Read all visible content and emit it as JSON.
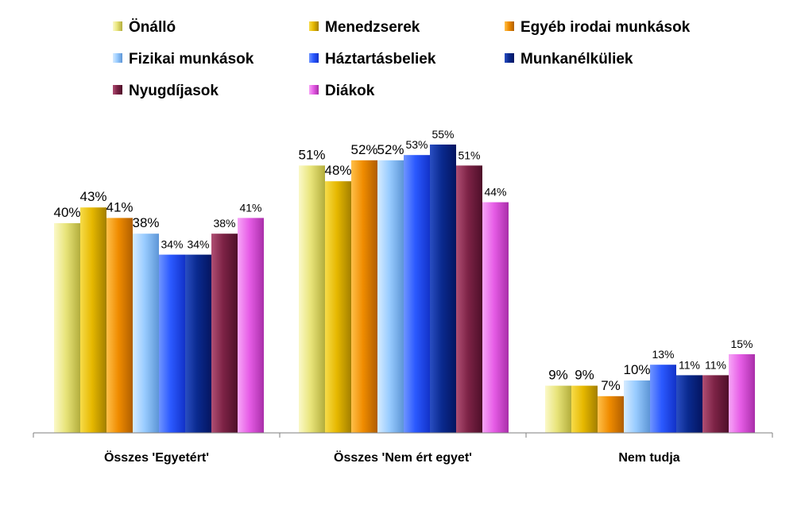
{
  "chart_data": {
    "type": "bar",
    "title": "",
    "xlabel": "",
    "ylabel": "",
    "ylim": [
      0,
      60
    ],
    "grid": false,
    "legend_position": "top",
    "categories": [
      "Összes 'Egyetért'",
      "Összes 'Nem ért egyet'",
      "Nem tudja"
    ],
    "series": [
      {
        "name": "Önálló",
        "values": [
          40,
          51,
          9
        ],
        "labels": [
          "40%",
          "51%",
          "9%"
        ],
        "color": "#e8e47a",
        "color_light": "#fbf9c9",
        "color_dark": "#b3ad3c"
      },
      {
        "name": "Menedzserek",
        "values": [
          43,
          48,
          9
        ],
        "labels": [
          "43%",
          "48%",
          "9%"
        ],
        "color": "#e6b800",
        "color_light": "#f7dc4a",
        "color_dark": "#a37f00"
      },
      {
        "name": "Egyéb irodai munkások",
        "values": [
          41,
          52,
          7
        ],
        "labels": [
          "41%",
          "52%",
          "7%"
        ],
        "color": "#f08c00",
        "color_light": "#ffc04a",
        "color_dark": "#b05e00"
      },
      {
        "name": "Fizikai munkások",
        "values": [
          38,
          52,
          10
        ],
        "labels": [
          "38%",
          "52%",
          "10%"
        ],
        "color": "#99ccff",
        "color_light": "#d6ebff",
        "color_dark": "#5d95d6"
      },
      {
        "name": "Háztartásbeliek",
        "values": [
          34,
          53,
          13
        ],
        "labels": [
          "34%",
          "53%",
          "13%"
        ],
        "color": "#2b59ff",
        "color_light": "#6f95ff",
        "color_dark": "#1232c8"
      },
      {
        "name": "Munkanélküliek",
        "values": [
          34,
          55,
          11
        ],
        "labels": [
          "34%",
          "55%",
          "11%"
        ],
        "color": "#0a2a8f",
        "color_light": "#2a4ec2",
        "color_dark": "#041560"
      },
      {
        "name": "Nyugdíjasok",
        "values": [
          38,
          51,
          11
        ],
        "labels": [
          "38%",
          "51%",
          "11%"
        ],
        "color": "#7d2346",
        "color_light": "#b04f74",
        "color_dark": "#4e0f29"
      },
      {
        "name": "Diákok",
        "values": [
          41,
          44,
          15
        ],
        "labels": [
          "41%",
          "44%",
          "15%"
        ],
        "color": "#e65ce6",
        "color_light": "#f7a6f7",
        "color_dark": "#a92fa9"
      }
    ]
  }
}
